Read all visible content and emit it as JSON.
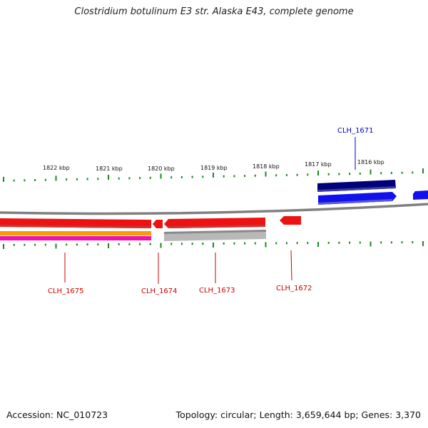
{
  "title": "Clostridium botulinum E3 str. Alaska E43, complete genome",
  "footer": {
    "accession": "Accession: NC_010723",
    "summary": "Topology: circular; Length: 3,659,644 bp; Genes: 3,370"
  },
  "colors": {
    "backbone": "#808080",
    "tick": "#1a8a1a",
    "forward_gene": "#ee1111",
    "reverse_gene": "#1111ee",
    "reverse_gene_dark": "#00007a",
    "forward_label": "#cc0000",
    "reverse_label": "#0000cc",
    "orange_track": "#ff9900",
    "magenta_track": "#ee11aa",
    "gray_track": "#b8b8b8"
  },
  "scale_labels": [
    "1822 kbp",
    "1821 kbp",
    "1820 kbp",
    "1819 kbp",
    "1818 kbp",
    "1817 kbp",
    "1816 kbp"
  ],
  "genes": [
    {
      "id": "CLH_1671",
      "strand": "reverse"
    },
    {
      "id": "CLH_1672",
      "strand": "forward"
    },
    {
      "id": "CLH_1673",
      "strand": "forward"
    },
    {
      "id": "CLH_1674",
      "strand": "forward"
    },
    {
      "id": "CLH_1675",
      "strand": "forward"
    }
  ]
}
